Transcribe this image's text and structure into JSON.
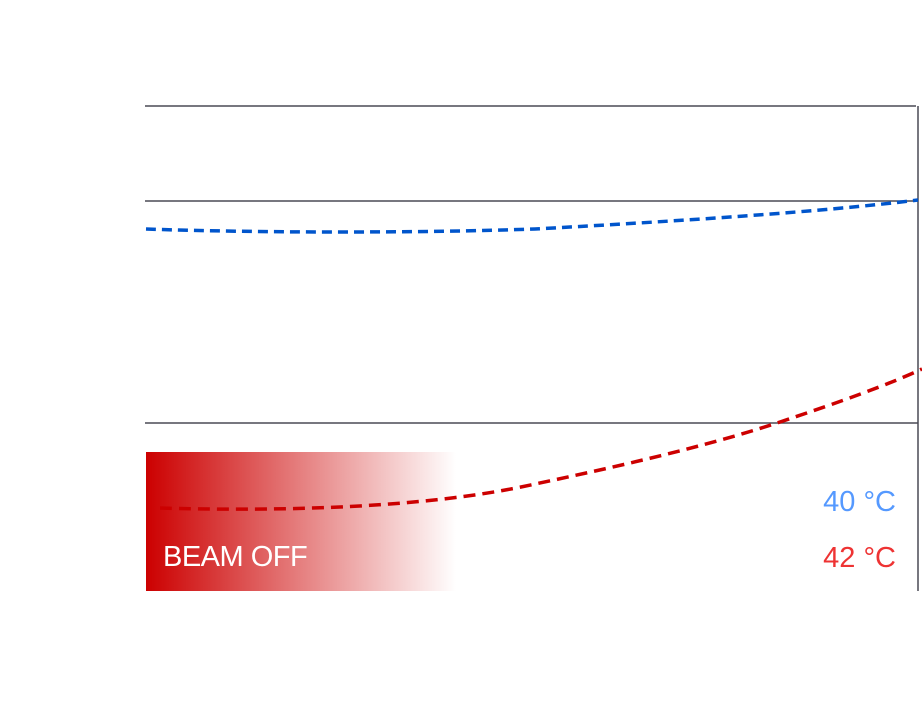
{
  "beam": {
    "status_label": "BEAM OFF"
  },
  "readouts": [
    {
      "label": "40 °C",
      "color": "#5599ff"
    },
    {
      "label": "42 °C",
      "color": "#ee3333"
    }
  ],
  "series_colors": {
    "blue": "#0055cc",
    "red": "#cc0000"
  }
}
